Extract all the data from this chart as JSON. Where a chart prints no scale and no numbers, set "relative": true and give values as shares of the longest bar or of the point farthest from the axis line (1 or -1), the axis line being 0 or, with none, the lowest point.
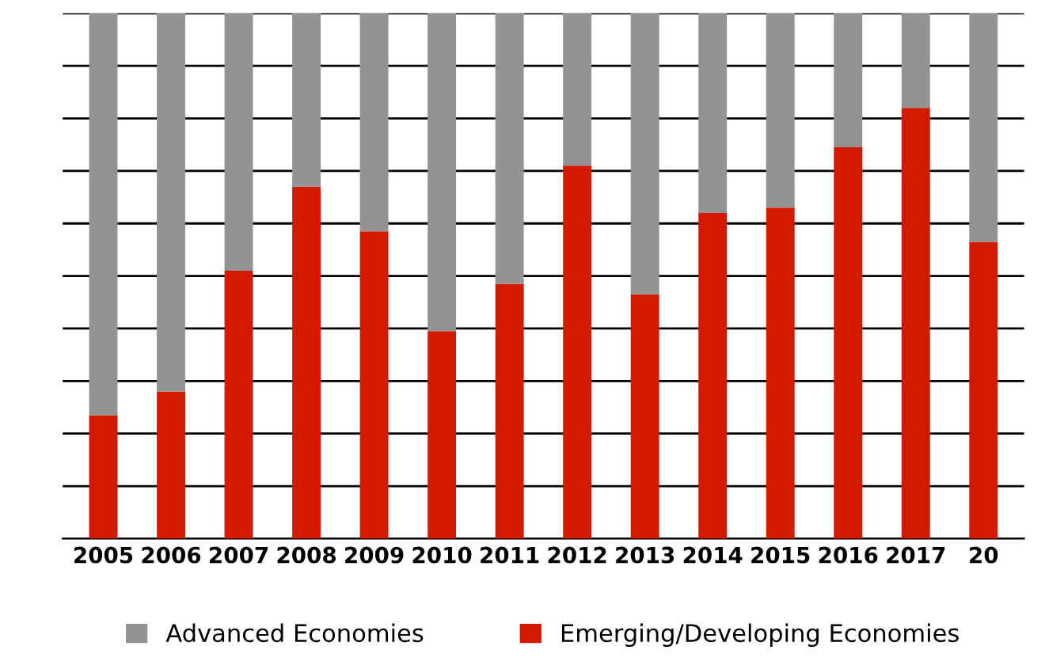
{
  "chart_data": {
    "type": "bar",
    "stacked": true,
    "relative": true,
    "categories": [
      "2005",
      "2006",
      "2007",
      "2008",
      "2009",
      "2010",
      "2011",
      "2012",
      "2013",
      "2014",
      "2015",
      "2016",
      "2017",
      "20"
    ],
    "series": [
      {
        "name": "Emerging/Developing Economies",
        "color": "#d11a00",
        "values": [
          0.235,
          0.28,
          0.51,
          0.67,
          0.585,
          0.395,
          0.485,
          0.71,
          0.465,
          0.62,
          0.63,
          0.745,
          0.82,
          0.565
        ]
      },
      {
        "name": "Advanced Economies",
        "color": "#939393",
        "values": [
          0.765,
          0.72,
          0.49,
          0.33,
          0.415,
          0.605,
          0.515,
          0.29,
          0.535,
          0.38,
          0.37,
          0.255,
          0.18,
          0.435
        ]
      }
    ],
    "grid": "y",
    "legend": "bottom"
  }
}
